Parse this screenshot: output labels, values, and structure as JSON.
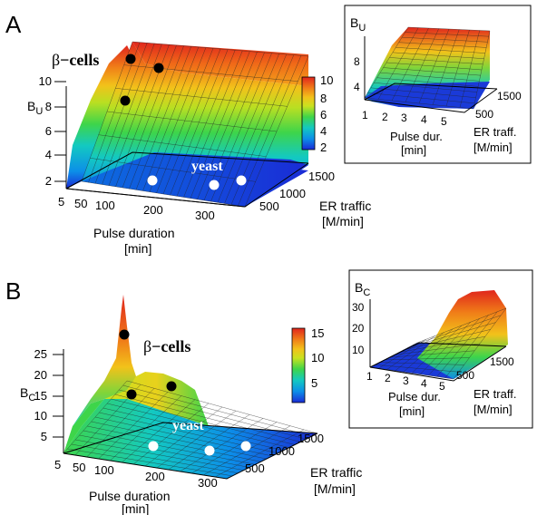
{
  "panels": [
    {
      "letter": "A",
      "main": {
        "zlabel": "B",
        "zlabel_sub": "U",
        "z_ticks": [
          "2",
          "4",
          "6",
          "8",
          "10"
        ],
        "x_ticks": [
          "5",
          "50",
          "100",
          "200",
          "300"
        ],
        "x_label_line1": "Pulse duration",
        "x_label_line2": "[min]",
        "y_ticks": [
          "500",
          "1000",
          "1500"
        ],
        "y_label_line1": "ER traffic",
        "y_label_line2": "[M/min]",
        "beta_label_greek": "β",
        "beta_label_rest": "−cells",
        "yeast_label": "yeast",
        "colorbar_ticks": [
          "2",
          "4",
          "6",
          "8",
          "10"
        ]
      },
      "inset": {
        "zlabel": "B",
        "zlabel_sub": "U",
        "z_ticks": [
          "4",
          "8"
        ],
        "x_ticks": [
          "1",
          "2",
          "3",
          "4",
          "5"
        ],
        "x_label_line1": "Pulse dur.",
        "x_label_line2": "[min]",
        "y_ticks": [
          "500",
          "1500"
        ],
        "y_label_line1": "ER traff.",
        "y_label_line2": "[M/min]"
      }
    },
    {
      "letter": "B",
      "main": {
        "zlabel": "B",
        "zlabel_sub": "C",
        "z_ticks": [
          "5",
          "10",
          "15",
          "20",
          "25"
        ],
        "x_ticks": [
          "5",
          "50",
          "100",
          "200",
          "300"
        ],
        "x_label_line1": "Pulse duration",
        "x_label_line2": "[min]",
        "y_ticks": [
          "500",
          "1000",
          "1500"
        ],
        "y_label_line1": "ER traffic",
        "y_label_line2": "[M/min]",
        "beta_label_greek": "β",
        "beta_label_rest": "−cells",
        "yeast_label": "yeast",
        "colorbar_ticks": [
          "5",
          "10",
          "15"
        ]
      },
      "inset": {
        "zlabel": "B",
        "zlabel_sub": "C",
        "z_ticks": [
          "10",
          "20",
          "30"
        ],
        "x_ticks": [
          "1",
          "2",
          "3",
          "4",
          "5"
        ],
        "x_label_line1": "Pulse dur.",
        "x_label_line2": "[min]",
        "y_ticks": [
          "500",
          "1500"
        ],
        "y_label_line1": "ER traff.",
        "y_label_line2": "[M/min]"
      }
    }
  ],
  "chart_data": [
    {
      "type": "heatmap",
      "subtype": "surface3d",
      "panel": "A",
      "x_ticks": [
        5,
        50,
        100,
        200,
        300
      ],
      "y_ticks": [
        500,
        1000,
        1500
      ],
      "zlim": [
        1,
        11
      ],
      "colorbar_range": [
        1,
        10.5
      ],
      "x": [
        5,
        50,
        100,
        150,
        200,
        250,
        300
      ],
      "y": [
        300,
        1000,
        1700
      ],
      "z": [
        [
          1.8,
          1.8,
          1.8
        ],
        [
          1.8,
          1.9,
          2.0
        ],
        [
          1.9,
          2.0,
          2.0
        ],
        [
          2.0,
          2.1,
          2.1
        ],
        [
          2.1,
          2.1,
          2.2
        ],
        [
          2.1,
          2.2,
          2.2
        ],
        [
          2.2,
          2.2,
          2.3
        ]
      ],
      "beta_points": [
        [
          5,
          500,
          8.3
        ],
        [
          5,
          1000,
          10.2
        ],
        [
          50,
          1500,
          10.0
        ]
      ],
      "yeast_points": [
        [
          200,
          500,
          2.0
        ],
        [
          300,
          1000,
          2.0
        ],
        [
          300,
          1500,
          2.0
        ]
      ]
    },
    {
      "type": "heatmap",
      "subtype": "surface3d",
      "panel": "A-inset",
      "x_ticks": [
        1,
        2,
        3,
        4,
        5
      ],
      "y_ticks": [
        500,
        1500
      ],
      "zlim": [
        2,
        11
      ]
    },
    {
      "type": "heatmap",
      "subtype": "surface3d",
      "panel": "B",
      "x_ticks": [
        5,
        50,
        100,
        200,
        300
      ],
      "y_ticks": [
        500,
        1000,
        1500
      ],
      "zlim": [
        0,
        30
      ],
      "colorbar_range": [
        1,
        16
      ],
      "beta_points": [
        [
          5,
          500,
          15
        ],
        [
          5,
          1500,
          28
        ],
        [
          100,
          1000,
          17
        ]
      ],
      "yeast_points": [
        [
          200,
          500,
          1
        ],
        [
          300,
          1000,
          1
        ],
        [
          300,
          1500,
          1
        ]
      ]
    },
    {
      "type": "heatmap",
      "subtype": "surface3d",
      "panel": "B-inset",
      "x_ticks": [
        1,
        2,
        3,
        4,
        5
      ],
      "y_ticks": [
        500,
        1500
      ],
      "zlim": [
        0,
        35
      ]
    }
  ],
  "colors": {
    "colormap": [
      "#1a2bd6",
      "#0c8fe8",
      "#13c9c1",
      "#3ed54a",
      "#c9e21f",
      "#f2c21a",
      "#f07d18",
      "#e0251d"
    ],
    "beta_dot": "#000000",
    "yeast_dot": "#ffffff"
  }
}
